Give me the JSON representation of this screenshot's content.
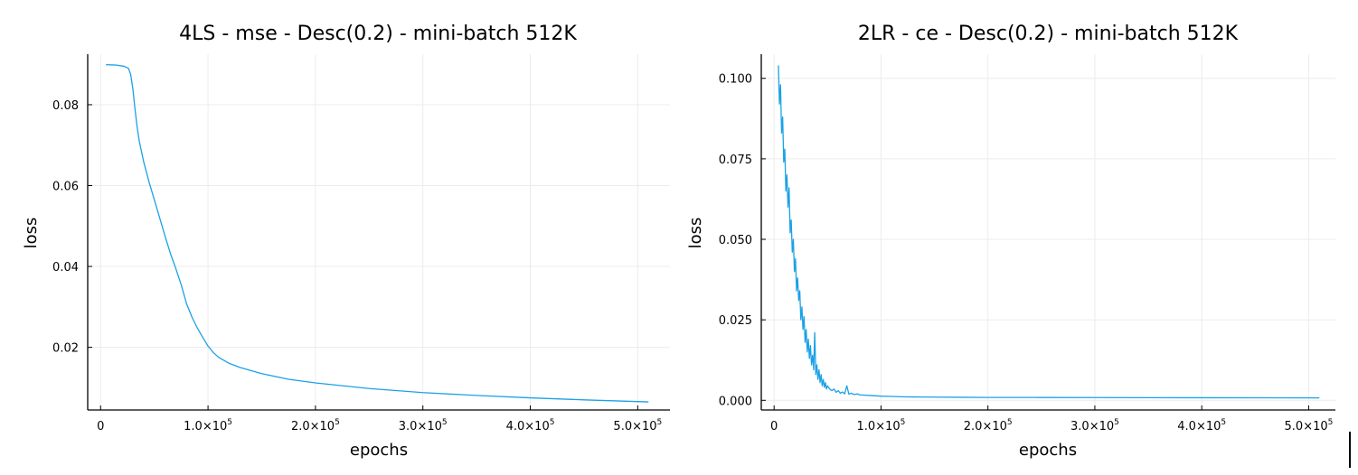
{
  "colors": {
    "series": "#1ba1e6",
    "grid": "#ececec",
    "axis": "#000000"
  },
  "chart_data": [
    {
      "type": "line",
      "title": "4LS - mse - Desc(0.2) - mini-batch 512K",
      "xlabel": "epochs",
      "ylabel": "loss",
      "xlim": [
        -12000,
        530000
      ],
      "ylim": [
        0.0045,
        0.0925
      ],
      "xticks": [
        0,
        100000,
        200000,
        300000,
        400000,
        500000
      ],
      "xtick_labels": [
        {
          "base": "0",
          "exp": ""
        },
        {
          "base": "1.0×10",
          "exp": "5"
        },
        {
          "base": "2.0×10",
          "exp": "5"
        },
        {
          "base": "3.0×10",
          "exp": "5"
        },
        {
          "base": "4.0×10",
          "exp": "5"
        },
        {
          "base": "5.0×10",
          "exp": "5"
        }
      ],
      "yticks": [
        0.02,
        0.04,
        0.06,
        0.08
      ],
      "ytick_labels": [
        "0.02",
        "0.04",
        "0.06",
        "0.08"
      ],
      "grid": true,
      "legend": "none",
      "series": [
        {
          "x": [
            5000,
            15000,
            22000,
            26000,
            28000,
            30000,
            32000,
            34000,
            36000,
            40000,
            45000,
            50000,
            55000,
            60000,
            65000,
            70000,
            75000,
            80000,
            85000,
            90000,
            95000,
            100000,
            105000,
            110000,
            120000,
            130000,
            150000,
            175000,
            200000,
            250000,
            300000,
            350000,
            400000,
            450000,
            510000
          ],
          "y": [
            0.0899,
            0.0898,
            0.0895,
            0.089,
            0.0875,
            0.084,
            0.079,
            0.0745,
            0.071,
            0.066,
            0.061,
            0.0565,
            0.052,
            0.0475,
            0.0432,
            0.0395,
            0.0355,
            0.0308,
            0.0275,
            0.0248,
            0.0225,
            0.0203,
            0.0187,
            0.0175,
            0.016,
            0.015,
            0.0135,
            0.0121,
            0.0112,
            0.0098,
            0.0088,
            0.0081,
            0.0075,
            0.007,
            0.0065
          ]
        }
      ]
    },
    {
      "type": "line",
      "title": "2LR - ce - Desc(0.2) - mini-batch 512K",
      "xlabel": "epochs",
      "ylabel": "loss",
      "xlim": [
        -12000,
        525000
      ],
      "ylim": [
        -0.003,
        0.1075
      ],
      "xticks": [
        0,
        100000,
        200000,
        300000,
        400000,
        500000
      ],
      "xtick_labels": [
        {
          "base": "0",
          "exp": ""
        },
        {
          "base": "1.0×10",
          "exp": "5"
        },
        {
          "base": "2.0×10",
          "exp": "5"
        },
        {
          "base": "3.0×10",
          "exp": "5"
        },
        {
          "base": "4.0×10",
          "exp": "5"
        },
        {
          "base": "5.0×10",
          "exp": "5"
        }
      ],
      "yticks": [
        0.0,
        0.025,
        0.05,
        0.075,
        0.1
      ],
      "ytick_labels": [
        "0.000",
        "0.025",
        "0.050",
        "0.075",
        "0.100"
      ],
      "grid": true,
      "legend": "none",
      "series": [
        {
          "x": [
            4000,
            5000,
            6000,
            7000,
            8000,
            9000,
            10000,
            11000,
            12000,
            13000,
            14000,
            15000,
            16000,
            17000,
            18000,
            19000,
            20000,
            21000,
            22000,
            23000,
            24000,
            25000,
            26000,
            27000,
            28000,
            29000,
            30000,
            31000,
            32000,
            33000,
            34000,
            35000,
            36000,
            37000,
            38000,
            39000,
            40000,
            41000,
            42000,
            43000,
            44000,
            45000,
            46000,
            47000,
            48000,
            49000,
            50000,
            52000,
            54000,
            56000,
            58000,
            60000,
            62000,
            64000,
            66000,
            68000,
            70000,
            72000,
            75000,
            78000,
            80000,
            85000,
            90000,
            95000,
            100000,
            110000,
            120000,
            130000,
            150000,
            175000,
            200000,
            250000,
            300000,
            350000,
            400000,
            450000,
            510000
          ],
          "y": [
            0.104,
            0.092,
            0.098,
            0.083,
            0.088,
            0.074,
            0.078,
            0.065,
            0.07,
            0.06,
            0.066,
            0.052,
            0.056,
            0.046,
            0.05,
            0.04,
            0.044,
            0.034,
            0.038,
            0.031,
            0.034,
            0.025,
            0.029,
            0.022,
            0.026,
            0.018,
            0.022,
            0.015,
            0.019,
            0.013,
            0.017,
            0.011,
            0.014,
            0.0095,
            0.021,
            0.008,
            0.011,
            0.0065,
            0.0095,
            0.0055,
            0.008,
            0.0045,
            0.0065,
            0.004,
            0.0055,
            0.0035,
            0.0045,
            0.0035,
            0.003,
            0.0035,
            0.0025,
            0.003,
            0.0022,
            0.0026,
            0.002,
            0.0045,
            0.0019,
            0.0022,
            0.0018,
            0.002,
            0.0017,
            0.0016,
            0.0015,
            0.0014,
            0.0013,
            0.0012,
            0.0011,
            0.00105,
            0.001,
            0.00095,
            0.0009,
            0.00088,
            0.00085,
            0.00083,
            0.0008,
            0.00078,
            0.00075
          ]
        }
      ]
    }
  ]
}
